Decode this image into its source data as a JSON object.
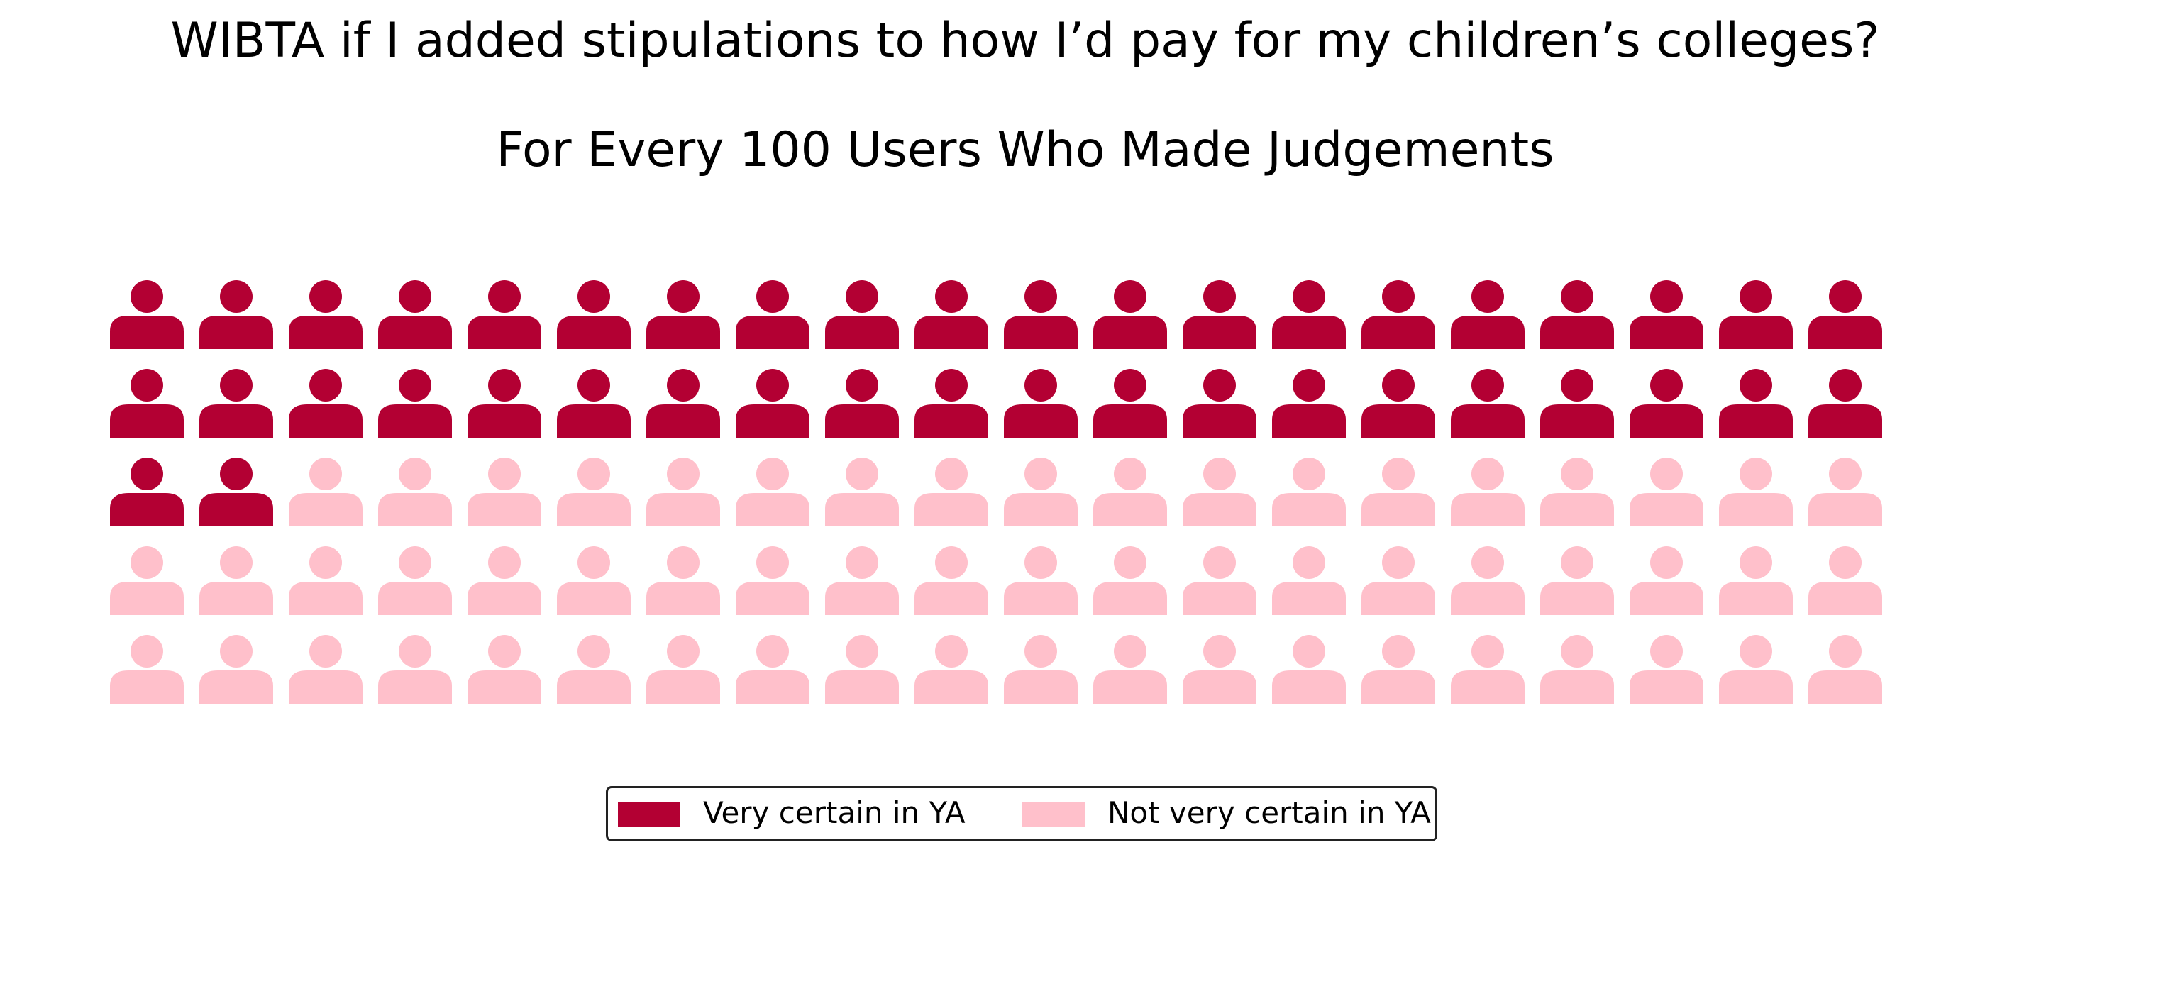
{
  "chart_data": {
    "type": "waffle",
    "title": "WIBTA if I added stipulations to how I’d pay for my children’s colleges?",
    "subtitle": "For Every 100 Users Who Made Judgements",
    "icon": "person-icon",
    "rows": 5,
    "columns": 20,
    "total": 100,
    "categories": [
      "Very certain in YA",
      "Not very certain in YA"
    ],
    "values": [
      42,
      58
    ],
    "colors": [
      "#b30033",
      "#ffc0cb"
    ],
    "legend_position": "bottom-center"
  }
}
